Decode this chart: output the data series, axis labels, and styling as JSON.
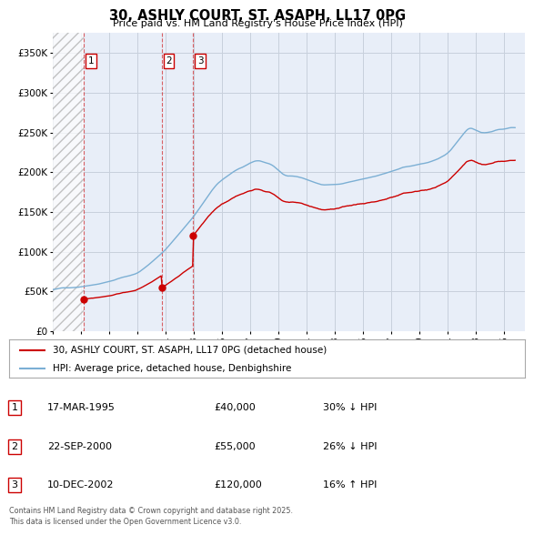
{
  "title": "30, ASHLY COURT, ST. ASAPH, LL17 0PG",
  "subtitle": "Price paid vs. HM Land Registry's House Price Index (HPI)",
  "ylabel_ticks": [
    "£0",
    "£50K",
    "£100K",
    "£150K",
    "£200K",
    "£250K",
    "£300K",
    "£350K"
  ],
  "ytick_values": [
    0,
    50000,
    100000,
    150000,
    200000,
    250000,
    300000,
    350000
  ],
  "ylim": [
    0,
    375000
  ],
  "xlim_start": 1993.0,
  "xlim_end": 2026.5,
  "sale_year_nums": [
    1995.21,
    2000.72,
    2002.95
  ],
  "sale_prices": [
    40000,
    55000,
    120000
  ],
  "sale_labels": [
    "1",
    "2",
    "3"
  ],
  "xtick_years": [
    1993,
    1995,
    1997,
    1999,
    2001,
    2003,
    2005,
    2007,
    2009,
    2011,
    2013,
    2015,
    2017,
    2019,
    2021,
    2023,
    2025
  ],
  "legend_line1": "30, ASHLY COURT, ST. ASAPH, LL17 0PG (detached house)",
  "legend_line2": "HPI: Average price, detached house, Denbighshire",
  "table_data": [
    [
      "1",
      "17-MAR-1995",
      "£40,000",
      "30% ↓ HPI"
    ],
    [
      "2",
      "22-SEP-2000",
      "£55,000",
      "26% ↓ HPI"
    ],
    [
      "3",
      "10-DEC-2002",
      "£120,000",
      "16% ↑ HPI"
    ]
  ],
  "footnote": "Contains HM Land Registry data © Crown copyright and database right 2025.\nThis data is licensed under the Open Government Licence v3.0.",
  "property_color": "#cc0000",
  "hpi_color": "#7bafd4",
  "background_color": "#e8eef8",
  "grid_color": "#c8d0dc",
  "hatch_end": 1995.21
}
